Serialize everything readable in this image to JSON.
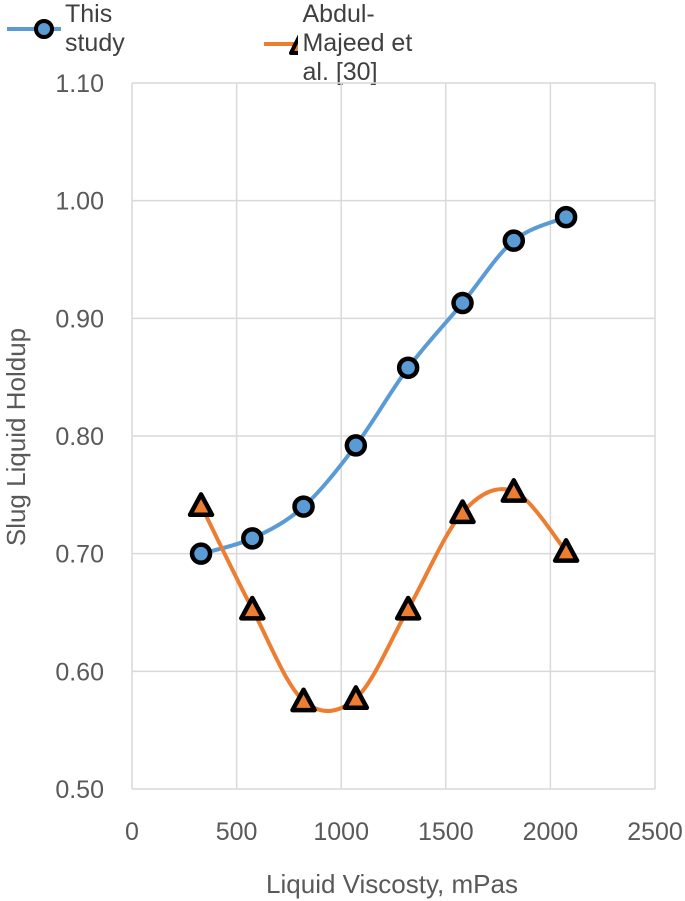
{
  "chart_data": {
    "type": "line",
    "title": "",
    "xlabel": "Liquid Viscosty, mPas",
    "ylabel": "Slug Liquid Holdup",
    "xlim": [
      0,
      2500
    ],
    "ylim": [
      0.5,
      1.1
    ],
    "xticks": [
      "0",
      "500",
      "1000",
      "1500",
      "2000",
      "2500"
    ],
    "yticks": [
      "0.50",
      "0.60",
      "0.70",
      "0.80",
      "0.90",
      "1.00",
      "1.10"
    ],
    "grid": true,
    "legend_position": "top",
    "series": [
      {
        "name": "This study",
        "color": "#5B9BD5",
        "marker": "circle",
        "smooth": true,
        "x": [
          330,
          575,
          820,
          1070,
          1320,
          1580,
          1825,
          2075
        ],
        "y": [
          0.7,
          0.713,
          0.74,
          0.792,
          0.858,
          0.913,
          0.966,
          0.986
        ]
      },
      {
        "name": "Abdul-Majeed et al. [30]",
        "color": "#ED7D31",
        "marker": "triangle",
        "smooth": true,
        "x": [
          330,
          575,
          820,
          1070,
          1320,
          1580,
          1825,
          2075
        ],
        "y": [
          0.741,
          0.653,
          0.575,
          0.577,
          0.653,
          0.735,
          0.753,
          0.702
        ]
      }
    ]
  }
}
